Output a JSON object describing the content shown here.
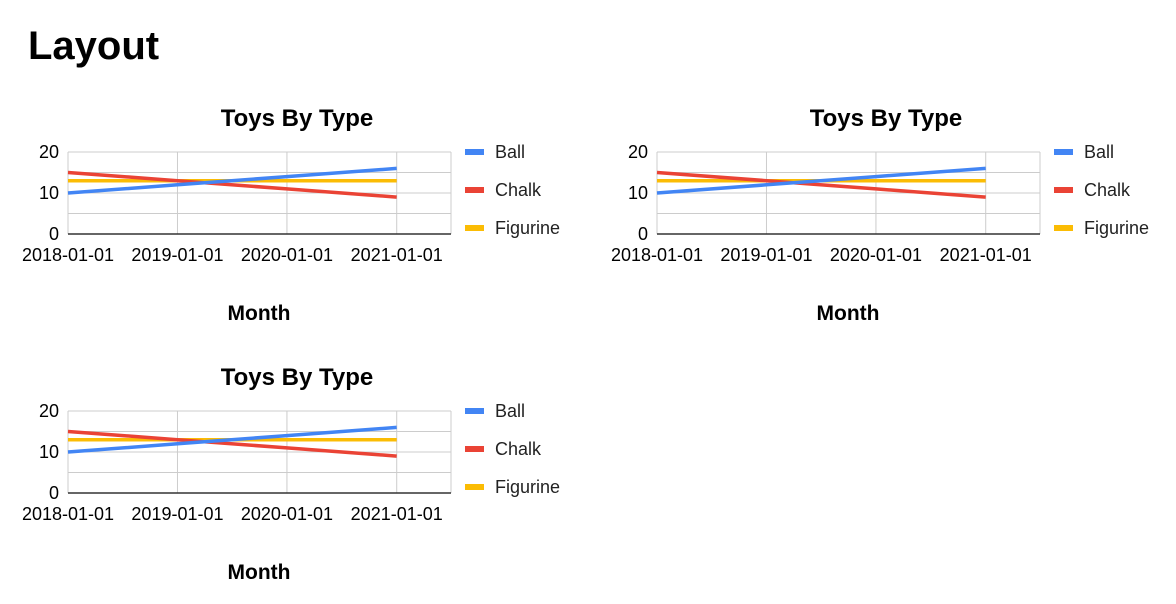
{
  "page": {
    "heading": "Layout"
  },
  "colors": {
    "grid": "#cccccc",
    "axis": "#333333",
    "text": "#000000",
    "legend_text": "#222222"
  },
  "chart_data": [
    {
      "type": "line",
      "title": "Toys By Type",
      "xlabel": "Month",
      "ylabel": "",
      "x": [
        "2018-01-01",
        "2019-01-01",
        "2020-01-01",
        "2021-01-01"
      ],
      "xlim": [
        "2018-01-01",
        "2021-07-01"
      ],
      "ylim": [
        0,
        20
      ],
      "yticks": [
        0,
        10,
        20
      ],
      "grid": true,
      "legend": "right",
      "series": [
        {
          "name": "Ball",
          "color": "#4285f4",
          "values": [
            10,
            12,
            14,
            16
          ]
        },
        {
          "name": "Chalk",
          "color": "#ea4335",
          "values": [
            15,
            13,
            11,
            9
          ]
        },
        {
          "name": "Figurine",
          "color": "#fbbc04",
          "values": [
            13,
            13,
            13,
            13
          ]
        }
      ]
    },
    {
      "type": "line",
      "title": "Toys By Type",
      "xlabel": "Month",
      "ylabel": "",
      "x": [
        "2018-01-01",
        "2019-01-01",
        "2020-01-01",
        "2021-01-01"
      ],
      "xlim": [
        "2018-01-01",
        "2021-07-01"
      ],
      "ylim": [
        0,
        20
      ],
      "yticks": [
        0,
        10,
        20
      ],
      "grid": true,
      "legend": "right",
      "series": [
        {
          "name": "Ball",
          "color": "#4285f4",
          "values": [
            10,
            12,
            14,
            16
          ]
        },
        {
          "name": "Chalk",
          "color": "#ea4335",
          "values": [
            15,
            13,
            11,
            9
          ]
        },
        {
          "name": "Figurine",
          "color": "#fbbc04",
          "values": [
            13,
            13,
            13,
            13
          ]
        }
      ]
    },
    {
      "type": "line",
      "title": "Toys By Type",
      "xlabel": "Month",
      "ylabel": "",
      "x": [
        "2018-01-01",
        "2019-01-01",
        "2020-01-01",
        "2021-01-01"
      ],
      "xlim": [
        "2018-01-01",
        "2021-07-01"
      ],
      "ylim": [
        0,
        20
      ],
      "yticks": [
        0,
        10,
        20
      ],
      "grid": true,
      "legend": "right",
      "series": [
        {
          "name": "Ball",
          "color": "#4285f4",
          "values": [
            10,
            12,
            14,
            16
          ]
        },
        {
          "name": "Chalk",
          "color": "#ea4335",
          "values": [
            15,
            13,
            11,
            9
          ]
        },
        {
          "name": "Figurine",
          "color": "#fbbc04",
          "values": [
            13,
            13,
            13,
            13
          ]
        }
      ]
    }
  ]
}
